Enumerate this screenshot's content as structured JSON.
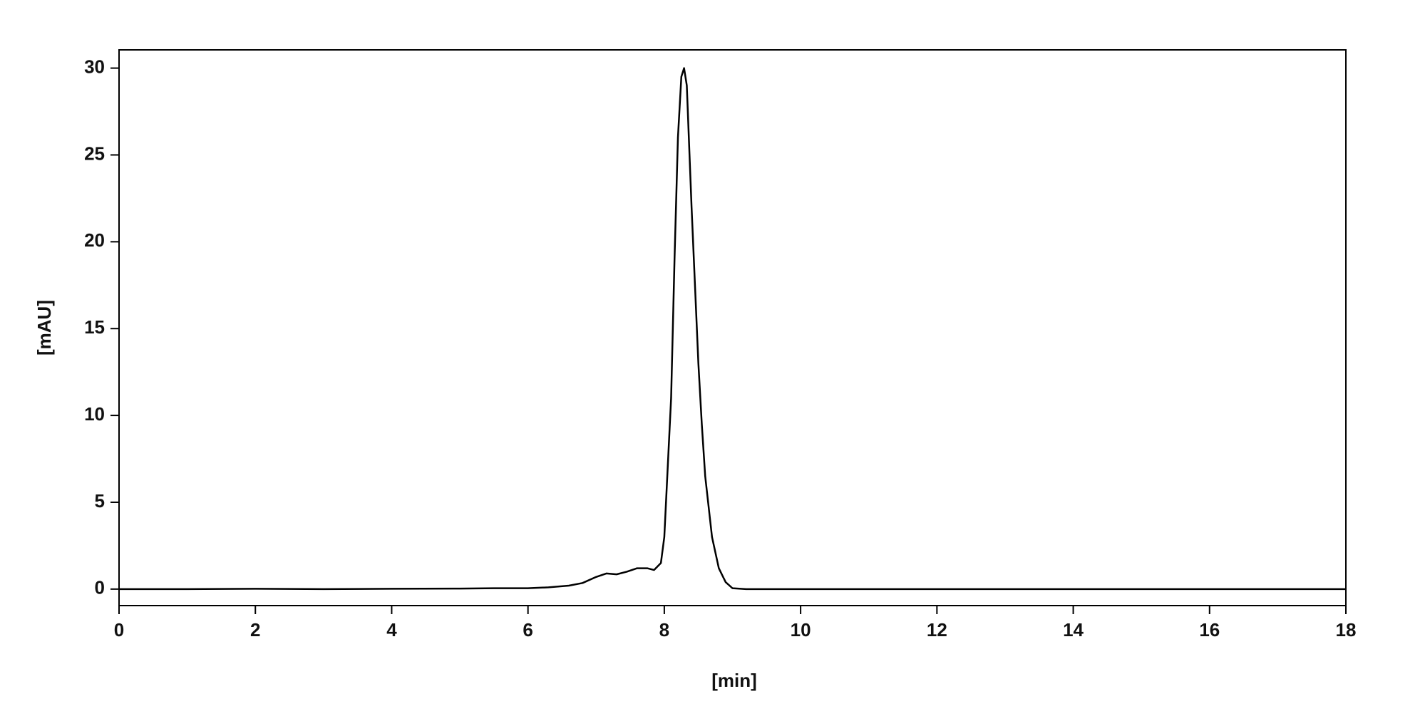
{
  "chart_data": {
    "type": "line",
    "xlabel": "[min]",
    "ylabel": "[mAU]",
    "xlim": [
      0,
      18
    ],
    "ylim": [
      -0.95,
      31.05
    ],
    "xticks": [
      0,
      2,
      4,
      6,
      8,
      10,
      12,
      14,
      16,
      18
    ],
    "yticks": [
      0,
      5,
      10,
      15,
      20,
      25,
      30
    ],
    "grid": false,
    "series": [
      {
        "color": "#000000",
        "x": [
          0,
          1,
          2,
          3,
          4,
          5,
          5.5,
          6,
          6.3,
          6.6,
          6.8,
          7.0,
          7.15,
          7.3,
          7.45,
          7.6,
          7.75,
          7.85,
          7.95,
          8.0,
          8.05,
          8.1,
          8.15,
          8.2,
          8.25,
          8.29,
          8.33,
          8.37,
          8.4,
          8.45,
          8.5,
          8.55,
          8.6,
          8.7,
          8.8,
          8.9,
          9.0,
          9.2,
          10,
          18
        ],
        "values": [
          0,
          0,
          0.02,
          0,
          0.02,
          0.03,
          0.05,
          0.05,
          0.1,
          0.2,
          0.35,
          0.7,
          0.9,
          0.85,
          1.0,
          1.2,
          1.2,
          1.1,
          1.5,
          3,
          7,
          11,
          19,
          26,
          29.5,
          30,
          29,
          25,
          22,
          17.5,
          13,
          9.5,
          6.5,
          3,
          1.2,
          0.4,
          0.05,
          0,
          0,
          0
        ]
      }
    ]
  }
}
